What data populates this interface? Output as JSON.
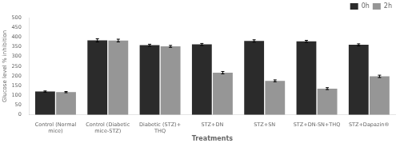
{
  "chart_data": {
    "type": "bar",
    "xlabel": "Treatments",
    "ylabel": "Glucose level % inhibition",
    "categories": [
      "Control (Normal\nmice)",
      "Control (Diabetic\nmice-STZ)",
      "Diabetic (STZ)+\nTHQ",
      "STZ+DN",
      "STZ+SN",
      "STZ+DN-SN+THQ",
      "STZ+Dapazin®"
    ],
    "series": [
      {
        "name": "0h",
        "color": "#2b2b2b",
        "values": [
          120,
          383,
          358,
          362,
          380,
          378,
          360
        ],
        "errors": [
          3,
          8,
          5,
          5,
          6,
          5,
          5
        ]
      },
      {
        "name": "2h",
        "color": "#969696",
        "values": [
          117,
          382,
          352,
          217,
          175,
          135,
          198
        ],
        "errors": [
          3,
          7,
          5,
          6,
          5,
          5,
          6
        ]
      }
    ],
    "ylim": [
      0,
      500
    ],
    "yticks": [
      0,
      50,
      100,
      150,
      200,
      250,
      300,
      350,
      400,
      450,
      500
    ],
    "legend": "upper right",
    "grid": false
  }
}
